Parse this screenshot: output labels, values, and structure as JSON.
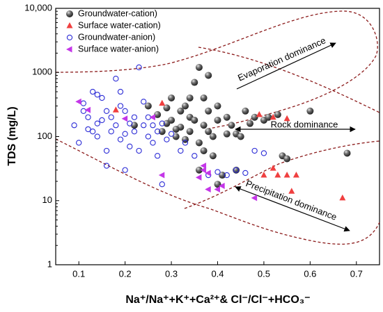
{
  "chart_data": {
    "type": "scatter",
    "xlabel": "Na⁺/Na⁺+K⁺+Ca²⁺& Cl⁻/Cl⁻+HCO₃⁻",
    "ylabel": "TDS (mg/L)",
    "log_y": true,
    "legend": "upper left",
    "annotations": [
      "Evaporation dominance",
      "Rock dominance",
      "Precipitation dominance"
    ],
    "xlim": [
      0.05,
      0.75
    ],
    "ylim": [
      1,
      10000
    ],
    "xticks": [
      0.1,
      0.2,
      0.3,
      0.4,
      0.5,
      0.6,
      0.7
    ],
    "yticks": [
      1,
      10,
      100,
      1000,
      {
        "value": 10000,
        "label": "10,000"
      }
    ],
    "series": [
      {
        "name": "Groundwater-cation)",
        "color": "#555555",
        "marker": "sphere",
        "x": [
          0.22,
          0.25,
          0.27,
          0.28,
          0.29,
          0.3,
          0.3,
          0.31,
          0.32,
          0.32,
          0.33,
          0.33,
          0.34,
          0.34,
          0.35,
          0.35,
          0.36,
          0.36,
          0.37,
          0.37,
          0.38,
          0.38,
          0.39,
          0.39,
          0.4,
          0.4,
          0.41,
          0.42,
          0.43,
          0.44,
          0.45,
          0.46,
          0.48,
          0.5,
          0.51,
          0.53,
          0.54,
          0.55,
          0.6,
          0.68,
          0.36,
          0.37,
          0.4,
          0.42,
          0.47,
          0.34,
          0.31,
          0.29,
          0.38,
          0.44
        ],
        "values": [
          150,
          300,
          220,
          120,
          160,
          400,
          180,
          100,
          250,
          140,
          90,
          300,
          200,
          120,
          700,
          180,
          1200,
          80,
          400,
          150,
          250,
          120,
          100,
          50,
          300,
          180,
          25,
          200,
          150,
          110,
          100,
          250,
          200,
          180,
          200,
          220,
          50,
          45,
          250,
          55,
          30,
          60,
          18,
          110,
          160,
          400,
          130,
          280,
          900,
          30
        ]
      },
      {
        "name": "Surface water-cation)",
        "color": "#f04040",
        "marker": "triangle",
        "x": [
          0.18,
          0.28,
          0.49,
          0.52,
          0.55,
          0.5,
          0.52,
          0.53,
          0.55,
          0.56,
          0.57,
          0.67
        ],
        "values": [
          260,
          330,
          220,
          200,
          190,
          25,
          32,
          25,
          25,
          14,
          25,
          11
        ]
      },
      {
        "name": "Groundwater-anion)",
        "color": "#2b2bd6",
        "marker": "open-circle",
        "x": [
          0.09,
          0.1,
          0.11,
          0.12,
          0.12,
          0.13,
          0.13,
          0.14,
          0.14,
          0.15,
          0.15,
          0.16,
          0.16,
          0.16,
          0.17,
          0.17,
          0.18,
          0.18,
          0.19,
          0.19,
          0.2,
          0.2,
          0.2,
          0.21,
          0.21,
          0.22,
          0.22,
          0.23,
          0.23,
          0.24,
          0.24,
          0.25,
          0.25,
          0.26,
          0.26,
          0.27,
          0.27,
          0.28,
          0.28,
          0.29,
          0.3,
          0.32,
          0.33,
          0.35,
          0.38,
          0.4,
          0.42,
          0.44,
          0.46,
          0.48,
          0.5,
          0.19,
          0.11,
          0.14
        ],
        "values": [
          150,
          80,
          330,
          200,
          130,
          120,
          500,
          160,
          100,
          400,
          180,
          250,
          60,
          35,
          120,
          200,
          800,
          150,
          90,
          500,
          250,
          110,
          30,
          160,
          70,
          200,
          120,
          1200,
          60,
          150,
          350,
          100,
          200,
          80,
          150,
          120,
          50,
          18,
          160,
          90,
          110,
          60,
          80,
          50,
          25,
          28,
          25,
          30,
          27,
          60,
          55,
          300,
          250,
          450
        ]
      },
      {
        "name": "Surface water-anion)",
        "color": "#c436e8",
        "marker": "left-triangle",
        "x": [
          0.1,
          0.12,
          0.2,
          0.26,
          0.28,
          0.37,
          0.37,
          0.36,
          0.38,
          0.38,
          0.4,
          0.48,
          0.41
        ],
        "values": [
          350,
          260,
          190,
          200,
          25,
          35,
          30,
          23,
          27,
          15,
          15,
          11,
          17
        ]
      }
    ]
  }
}
